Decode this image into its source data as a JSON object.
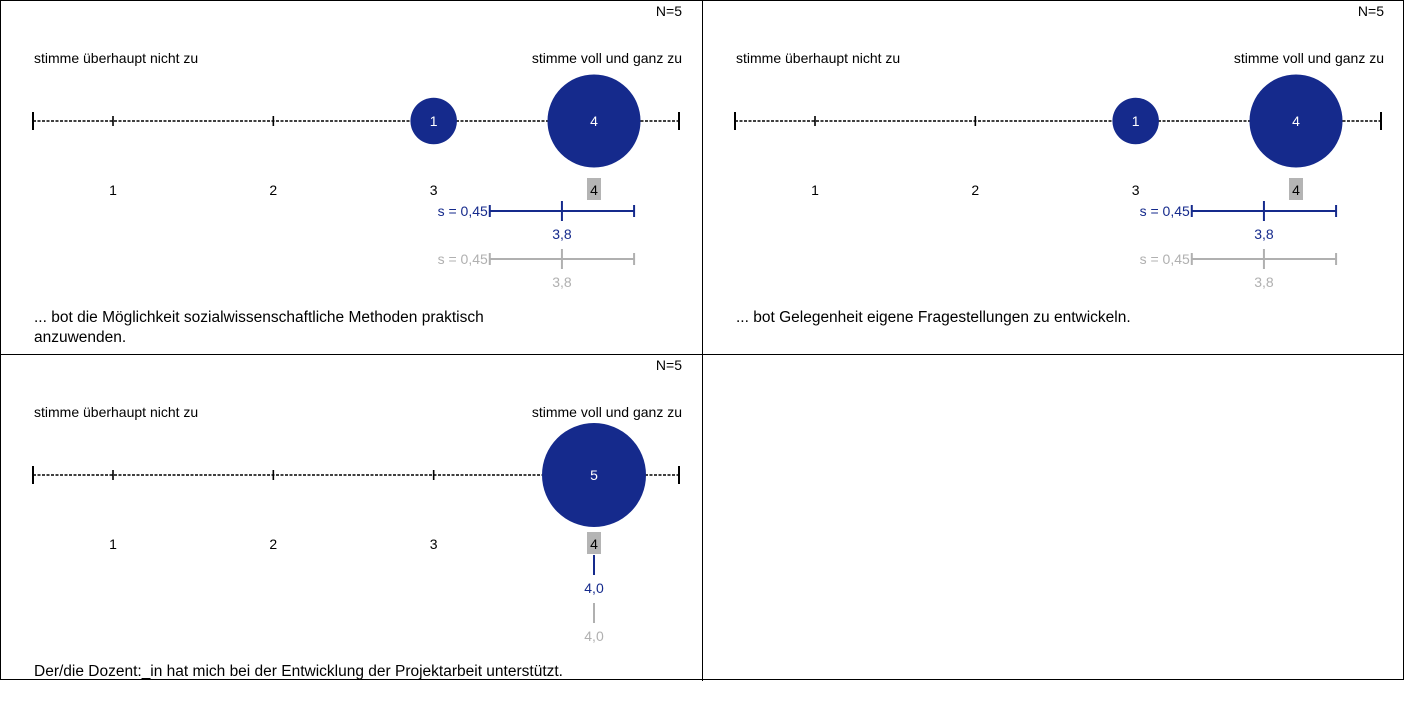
{
  "colors": {
    "primary": "#152a8c",
    "comparison": "#b0b0b0",
    "median_highlight": "#b4b4b4",
    "axis": "#000000",
    "bubble_text": "#ffffff"
  },
  "scale_ticks": [
    "1",
    "2",
    "3",
    "4"
  ],
  "chart_data": [
    {
      "type": "scatter",
      "n_label": "N=5",
      "left_anchor": "stimme überhaupt nicht zu",
      "right_anchor": "stimme voll und ganz zu",
      "question": "... bot die Möglichkeit sozialwissenschaftliche Methoden praktisch anzuwenden.",
      "question_lines": [
        "... bot die Möglichkeit sozialwissenschaftliche Methoden praktisch",
        "anzuwenden."
      ],
      "points": [
        {
          "scale": 3,
          "count": 1,
          "label": "1"
        },
        {
          "scale": 4,
          "count": 4,
          "label": "4"
        }
      ],
      "median": 4,
      "mean": 3.8,
      "mean_label": "3,8",
      "sd": 0.45,
      "sd_label": "s = 0,45",
      "comparison": {
        "mean": 3.8,
        "mean_label": "3,8",
        "sd": 0.45,
        "sd_label": "s = 0,45"
      }
    },
    {
      "type": "scatter",
      "n_label": "N=5",
      "left_anchor": "stimme überhaupt nicht zu",
      "right_anchor": "stimme voll und ganz zu",
      "question": "... bot Gelegenheit eigene Fragestellungen zu entwickeln.",
      "question_lines": [
        "... bot Gelegenheit eigene Fragestellungen zu entwickeln."
      ],
      "points": [
        {
          "scale": 3,
          "count": 1,
          "label": "1"
        },
        {
          "scale": 4,
          "count": 4,
          "label": "4"
        }
      ],
      "median": 4,
      "mean": 3.8,
      "mean_label": "3,8",
      "sd": 0.45,
      "sd_label": "s = 0,45",
      "comparison": {
        "mean": 3.8,
        "mean_label": "3,8",
        "sd": 0.45,
        "sd_label": "s = 0,45"
      }
    },
    {
      "type": "scatter",
      "n_label": "N=5",
      "left_anchor": "stimme überhaupt nicht zu",
      "right_anchor": "stimme voll und ganz zu",
      "question": "Der/die Dozent:_in hat mich bei der Entwicklung der Projektarbeit unterstützt.",
      "question_lines": [
        "Der/die Dozent:_in hat mich bei der Entwicklung der Projektarbeit unterstützt."
      ],
      "points": [
        {
          "scale": 4,
          "count": 5,
          "label": "5"
        }
      ],
      "median": 4,
      "mean": 4.0,
      "mean_label": "4,0",
      "sd": 0,
      "sd_label": "",
      "comparison": {
        "mean": 4.0,
        "mean_label": "4,0",
        "sd": 0,
        "sd_label": ""
      }
    }
  ]
}
